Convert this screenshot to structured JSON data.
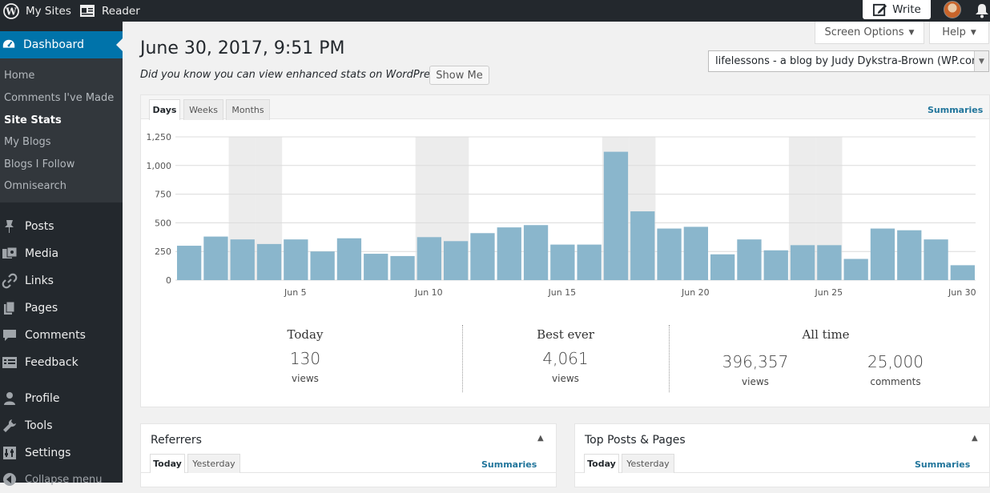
{
  "topbar": {
    "my_sites": "My Sites",
    "reader": "Reader",
    "write": "Write"
  },
  "sidebar": {
    "dashboard": "Dashboard",
    "submenu": [
      "Home",
      "Comments I've Made",
      "Site Stats",
      "My Blogs",
      "Blogs I Follow",
      "Omnisearch"
    ],
    "current_sub": "Site Stats",
    "menu": [
      "Posts",
      "Media",
      "Links",
      "Pages",
      "Comments",
      "Feedback",
      "Profile",
      "Tools",
      "Settings",
      "Collapse menu"
    ]
  },
  "header": {
    "screen_options": "Screen Options",
    "help": "Help",
    "title": "June 30, 2017, 9:51 PM",
    "notice": "Did you know you can view enhanced stats on WordPress.com?",
    "show_me": "Show Me",
    "blog_select": "lifelessons - a blog by Judy Dykstra-Brown (WP.com)"
  },
  "stats_panel": {
    "tabs": [
      "Days",
      "Weeks",
      "Months"
    ],
    "active_tab": "Days",
    "summaries": "Summaries",
    "today_label": "Today",
    "today_value": "130",
    "today_unit": "views",
    "best_label": "Best ever",
    "best_value": "4,061",
    "best_unit": "views",
    "alltime_label": "All time",
    "alltime_views": "396,357",
    "alltime_views_unit": "views",
    "alltime_comments": "25,000",
    "alltime_comments_unit": "comments"
  },
  "chart_data": {
    "type": "bar",
    "title": "",
    "xlabel": "",
    "ylabel": "",
    "ylim": [
      0,
      1250
    ],
    "yticks": [
      "0",
      "250",
      "500",
      "750",
      "1,000",
      "1,250"
    ],
    "ytick_values": [
      0,
      250,
      500,
      750,
      1000,
      1250
    ],
    "x_tick_labels": [
      {
        "day": 5,
        "label": "Jun 5"
      },
      {
        "day": 10,
        "label": "Jun 10"
      },
      {
        "day": 15,
        "label": "Jun 15"
      },
      {
        "day": 20,
        "label": "Jun 20"
      },
      {
        "day": 25,
        "label": "Jun 25"
      },
      {
        "day": 30,
        "label": "Jun 30"
      }
    ],
    "days": [
      1,
      2,
      3,
      4,
      5,
      6,
      7,
      8,
      9,
      10,
      11,
      12,
      13,
      14,
      15,
      16,
      17,
      18,
      19,
      20,
      21,
      22,
      23,
      24,
      25,
      26,
      27,
      28,
      29,
      30
    ],
    "values": [
      300,
      380,
      355,
      315,
      355,
      250,
      365,
      230,
      210,
      375,
      340,
      410,
      460,
      480,
      310,
      310,
      1120,
      600,
      450,
      465,
      225,
      355,
      260,
      305,
      305,
      185,
      450,
      435,
      355,
      130
    ],
    "weekend_shaded_days": [
      3,
      4,
      10,
      11,
      17,
      18,
      24,
      25
    ],
    "bar_color": "#8ab6cc",
    "weekend_color": "#ececec",
    "grid": true
  },
  "referrers": {
    "title": "Referrers",
    "tabs": [
      "Today",
      "Yesterday"
    ],
    "summaries": "Summaries"
  },
  "top_posts": {
    "title": "Top Posts & Pages",
    "tabs": [
      "Today",
      "Yesterday"
    ],
    "summaries": "Summaries"
  }
}
